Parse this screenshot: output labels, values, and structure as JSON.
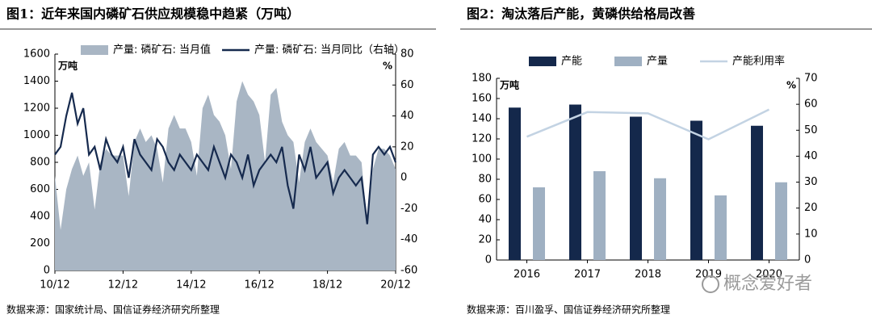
{
  "chart_data": [
    {
      "type": "combo",
      "title": "图1：近年来国内磷矿石供应规模稳中趋紧（万吨）",
      "source": "数据来源：国家统计局、国信证券经济研究所整理",
      "y_unit": "万吨",
      "y2_unit": "%",
      "categories": [
        "10/12",
        null,
        null,
        null,
        null,
        null,
        null,
        null,
        null,
        null,
        null,
        null,
        "12/12",
        null,
        null,
        null,
        null,
        null,
        null,
        null,
        null,
        null,
        null,
        null,
        "14/12",
        null,
        null,
        null,
        null,
        null,
        null,
        null,
        null,
        null,
        null,
        null,
        "16/12",
        null,
        null,
        null,
        null,
        null,
        null,
        null,
        null,
        null,
        null,
        null,
        "18/12",
        null,
        null,
        null,
        null,
        null,
        null,
        null,
        null,
        null,
        null,
        null,
        "20/12"
      ],
      "ylim": [
        0,
        1600
      ],
      "yticks": [
        0,
        200,
        400,
        600,
        800,
        1000,
        1200,
        1400,
        1600
      ],
      "y2lim": [
        -60,
        80
      ],
      "y2ticks": [
        -60,
        -40,
        -20,
        0,
        20,
        40,
        60,
        80
      ],
      "legend": "top",
      "series": [
        {
          "name": "产量: 磷矿石: 当月值",
          "type": "area",
          "color": "#a9b6c4",
          "values": [
            700,
            300,
            600,
            750,
            850,
            700,
            800,
            450,
            800,
            900,
            850,
            850,
            850,
            550,
            950,
            1050,
            950,
            1000,
            900,
            650,
            1050,
            1150,
            1050,
            1050,
            950,
            700,
            1200,
            1300,
            1150,
            1100,
            1000,
            750,
            1250,
            1400,
            1300,
            1250,
            1150,
            800,
            1300,
            1350,
            1100,
            1000,
            950,
            650,
            950,
            1050,
            950,
            900,
            850,
            650,
            900,
            950,
            850,
            850,
            800,
            350,
            750,
            900,
            900,
            850,
            750
          ]
        },
        {
          "name": "产量: 磷矿石: 当月同比（右轴）",
          "type": "line",
          "axis": "y2",
          "color": "#162a4e",
          "values": [
            15,
            20,
            40,
            55,
            35,
            45,
            15,
            20,
            5,
            25,
            15,
            10,
            20,
            0,
            25,
            15,
            10,
            5,
            25,
            20,
            10,
            5,
            15,
            10,
            5,
            15,
            10,
            5,
            20,
            10,
            0,
            15,
            10,
            0,
            15,
            -5,
            5,
            10,
            15,
            10,
            20,
            -5,
            -20,
            15,
            5,
            20,
            0,
            5,
            10,
            -10,
            0,
            5,
            0,
            -5,
            0,
            -30,
            15,
            20,
            15,
            20,
            10
          ]
        }
      ]
    },
    {
      "type": "combo",
      "title": "图2：淘汰落后产能，黄磷供给格局改善",
      "source": "数据来源：百川盈孚、国信证券经济研究所整理",
      "y_unit": "万吨",
      "y2_unit": "%",
      "categories": [
        "2016",
        "2017",
        "2018",
        "2019",
        "2020"
      ],
      "ylim": [
        0,
        180
      ],
      "yticks": [
        0,
        20,
        40,
        60,
        80,
        100,
        120,
        140,
        160,
        180
      ],
      "y2lim": [
        0,
        70
      ],
      "y2ticks": [
        0,
        10,
        20,
        30,
        40,
        50,
        60,
        70
      ],
      "legend": "top",
      "watermark": "概念爱好者",
      "series": [
        {
          "name": "产能",
          "type": "bar",
          "color": "#14284b",
          "values": [
            151,
            154,
            142,
            138,
            133
          ]
        },
        {
          "name": "产量",
          "type": "bar",
          "color": "#9fb0c2",
          "values": [
            72,
            88,
            81,
            64,
            77
          ]
        },
        {
          "name": "产能利用率",
          "type": "line",
          "axis": "y2",
          "color": "#c3d3e3",
          "values": [
            47.5,
            57,
            56.5,
            46.5,
            58
          ]
        }
      ]
    }
  ]
}
